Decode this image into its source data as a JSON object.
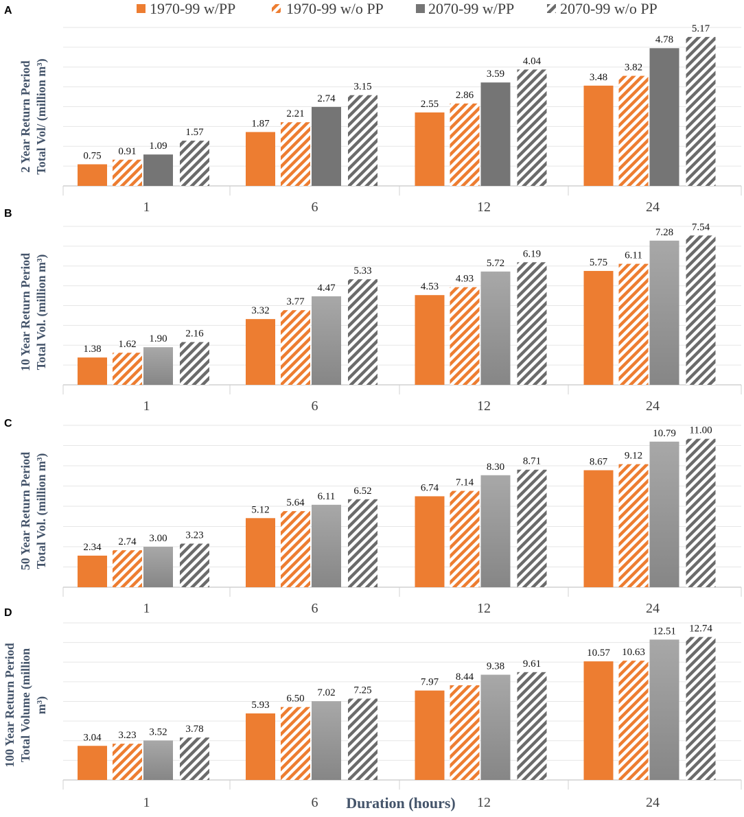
{
  "colors": {
    "orange": "#ED7D31",
    "dark_gray": "#757575",
    "gradient_gray_top": "#a6a6a6",
    "gradient_gray_bottom": "#8a8a8a",
    "hatch_gray": "#6b6b6b",
    "axis_text": "#404040",
    "ylabel_text": "#44546a",
    "gridline": "#e6e6e6",
    "baseline": "#d0d0d0"
  },
  "legend": [
    {
      "label": "1970-99 w/PP",
      "style": "solid-orange"
    },
    {
      "label": "1970-99 w/o PP",
      "style": "hatch-orange"
    },
    {
      "label": "2070-99 w/PP",
      "style": "solid-gray"
    },
    {
      "label": "2070-99 w/o PP",
      "style": "hatch-gray"
    }
  ],
  "xlabel": "Duration (hours)",
  "chart_data": [
    {
      "panel": "A",
      "type": "bar",
      "ylabel_lines": [
        "2 Year Return Period",
        "Total Vol/ (million m³)"
      ],
      "categories": [
        "1",
        "6",
        "12",
        "24"
      ],
      "ylim": [
        0,
        5.5
      ],
      "grid": true,
      "gray_style": "solid",
      "series": [
        {
          "name": "1970-99 w/PP",
          "values": [
            0.75,
            1.87,
            2.55,
            3.48
          ],
          "labels": [
            "0.75",
            "1.87",
            "2.55",
            "3.48"
          ]
        },
        {
          "name": "1970-99 w/o PP",
          "values": [
            0.91,
            2.21,
            2.86,
            3.82
          ],
          "labels": [
            "0.91",
            "2.21",
            "2.86",
            "3.82"
          ]
        },
        {
          "name": "2070-99 w/PP",
          "values": [
            1.09,
            2.74,
            3.59,
            4.78
          ],
          "labels": [
            "1.09",
            "2.74",
            "3.59",
            "4.78"
          ]
        },
        {
          "name": "2070-99 w/o PP",
          "values": [
            1.57,
            3.15,
            4.04,
            5.17
          ],
          "labels": [
            "1.57",
            "3.15",
            "4.04",
            "5.17"
          ]
        }
      ]
    },
    {
      "panel": "B",
      "type": "bar",
      "ylabel_lines": [
        "10 Year Return Period",
        "Total Vol. (million m³)"
      ],
      "categories": [
        "1",
        "6",
        "12",
        "24"
      ],
      "ylim": [
        0,
        8
      ],
      "grid": true,
      "gray_style": "gradient",
      "series": [
        {
          "name": "1970-99 w/PP",
          "values": [
            1.38,
            3.32,
            4.53,
            5.75
          ],
          "labels": [
            "1.38",
            "3.32",
            "4.53",
            "5.75"
          ]
        },
        {
          "name": "1970-99 w/o PP",
          "values": [
            1.62,
            3.77,
            4.93,
            6.11
          ],
          "labels": [
            "1.62",
            "3.77",
            "4.93",
            "6.11"
          ]
        },
        {
          "name": "2070-99 w/PP",
          "values": [
            1.9,
            4.47,
            5.72,
            7.28
          ],
          "labels": [
            "1.90",
            "4.47",
            "5.72",
            "7.28"
          ]
        },
        {
          "name": "2070-99 w/o PP",
          "values": [
            2.16,
            5.33,
            6.19,
            7.54
          ],
          "labels": [
            "2.16",
            "5.33",
            "6.19",
            "7.54"
          ]
        }
      ]
    },
    {
      "panel": "C",
      "type": "bar",
      "ylabel_lines": [
        "50 Year Return Period",
        "Total Vol. (million m³)"
      ],
      "categories": [
        "1",
        "6",
        "12",
        "24"
      ],
      "ylim": [
        0,
        12
      ],
      "grid": true,
      "gray_style": "gradient",
      "series": [
        {
          "name": "1970-99 w/PP",
          "values": [
            2.34,
            5.12,
            6.74,
            8.67
          ],
          "labels": [
            "2.34",
            "5.12",
            "6.74",
            "8.67"
          ]
        },
        {
          "name": "1970-99 w/o PP",
          "values": [
            2.74,
            5.64,
            7.14,
            9.12
          ],
          "labels": [
            "2.74",
            "5.64",
            "7.14",
            "9.12"
          ]
        },
        {
          "name": "2070-99 w/PP",
          "values": [
            3.0,
            6.11,
            8.3,
            10.79
          ],
          "labels": [
            "3.00",
            "6.11",
            "8.30",
            "10.79"
          ]
        },
        {
          "name": "2070-99 w/o PP",
          "values": [
            3.23,
            6.52,
            8.71,
            11.0
          ],
          "labels": [
            "3.23",
            "6.52",
            "8.71",
            "11.00"
          ]
        }
      ]
    },
    {
      "panel": "D",
      "type": "bar",
      "ylabel_lines": [
        "100 Year Return Period",
        "Total Volume (million",
        "m³)"
      ],
      "categories": [
        "1",
        "6",
        "12",
        "24"
      ],
      "ylim": [
        0,
        14
      ],
      "grid": true,
      "gray_style": "gradient",
      "series": [
        {
          "name": "1970-99 w/PP",
          "values": [
            3.04,
            5.93,
            7.97,
            10.57
          ],
          "labels": [
            "3.04",
            "5.93",
            "7.97",
            "10.57"
          ]
        },
        {
          "name": "1970-99 w/o PP",
          "values": [
            3.23,
            6.5,
            8.44,
            10.63
          ],
          "labels": [
            "3.23",
            "6.50",
            "8.44",
            "10.63"
          ]
        },
        {
          "name": "2070-99 w/PP",
          "values": [
            3.52,
            7.02,
            9.38,
            12.51
          ],
          "labels": [
            "3.52",
            "7.02",
            "9.38",
            "12.51"
          ]
        },
        {
          "name": "2070-99 w/o PP",
          "values": [
            3.78,
            7.25,
            9.61,
            12.74
          ],
          "labels": [
            "3.78",
            "7.25",
            "9.61",
            "12.74"
          ]
        }
      ]
    }
  ]
}
